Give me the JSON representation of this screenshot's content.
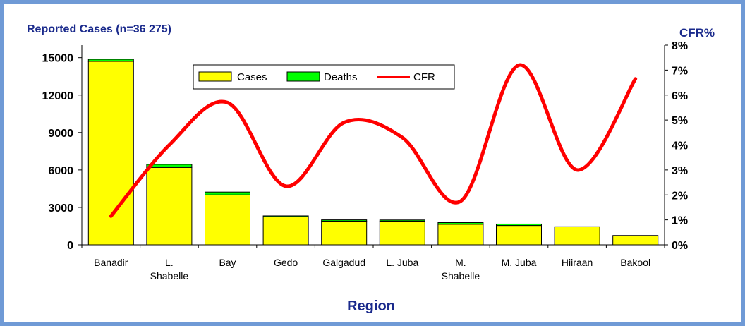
{
  "chart_data": {
    "type": "bar",
    "title": "Reported Cases (n=36 275)",
    "y2label": "CFR%",
    "xlabel": "Region",
    "categories": [
      [
        "Banadir"
      ],
      [
        "L.",
        "Shabelle"
      ],
      [
        "Bay"
      ],
      [
        "Gedo"
      ],
      [
        "Galgadud"
      ],
      [
        "L. Juba"
      ],
      [
        "M.",
        "Shabelle"
      ],
      [
        "M. Juba"
      ],
      [
        "Hiiraan"
      ],
      [
        "Bakool"
      ]
    ],
    "series": [
      {
        "name": "Cases",
        "values": [
          14700,
          6200,
          4000,
          2250,
          1900,
          1900,
          1650,
          1550,
          1450,
          750
        ]
      },
      {
        "name": "Deaths",
        "values": [
          170,
          250,
          230,
          70,
          100,
          90,
          130,
          120,
          0,
          0
        ]
      },
      {
        "name": "CFR",
        "values": [
          1.15,
          4.0,
          5.7,
          2.35,
          4.9,
          4.3,
          1.75,
          7.2,
          3.0,
          6.65
        ]
      }
    ],
    "yticks": [
      "0",
      "3000",
      "6000",
      "9000",
      "12000",
      "15000"
    ],
    "ylim": [
      0,
      16000
    ],
    "y2ticks": [
      "0%",
      "1%",
      "2%",
      "3%",
      "4%",
      "5%",
      "6%",
      "7%",
      "8%"
    ],
    "y2lim": [
      0,
      8
    ],
    "legend": "top-center",
    "colors": {
      "cases": "#ffff00",
      "deaths": "#00ff00",
      "cfr": "#ff0000",
      "title": "#1a2a8c",
      "border": "#6f9ad6"
    }
  }
}
